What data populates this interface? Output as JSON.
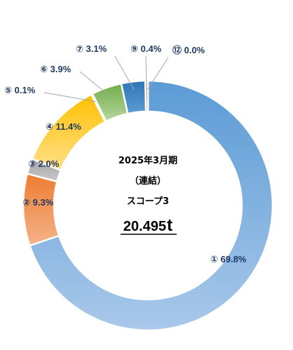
{
  "chart_data": {
    "type": "pie",
    "style": "donut",
    "center": {
      "line1": "2025年3月期",
      "line2": "（連結）",
      "line3": "スコープ3",
      "total_value": "20.495",
      "total_unit": "t"
    },
    "slices": [
      {
        "id": "1",
        "marker": "①",
        "value": 69.8,
        "label": "① 69.8%",
        "color_start": "#5b9bd5",
        "color_end": "#a9c8ea"
      },
      {
        "id": "2",
        "marker": "②",
        "value": 9.3,
        "label": "② 9.3%",
        "color_start": "#ed7d31",
        "color_end": "#f5b28a"
      },
      {
        "id": "3",
        "marker": "③",
        "value": 2.0,
        "label": "③ 2.0%",
        "color_start": "#a5a5a5",
        "color_end": "#c9c9c9"
      },
      {
        "id": "4",
        "marker": "④",
        "value": 11.4,
        "label": "④ 11.4%",
        "color_start": "#ffc000",
        "color_end": "#ffe08a"
      },
      {
        "id": "5",
        "marker": "⑤",
        "value": 0.1,
        "label": "⑤ 0.1%",
        "color_start": "#ffd966",
        "color_end": "#ffe699"
      },
      {
        "id": "6",
        "marker": "⑥",
        "value": 3.9,
        "label": "⑥ 3.9%",
        "color_start": "#70ad47",
        "color_end": "#b7d7a0"
      },
      {
        "id": "7",
        "marker": "⑦",
        "value": 3.1,
        "label": "⑦ 3.1%",
        "color_start": "#2e75b6",
        "color_end": "#5b9bd5"
      },
      {
        "id": "9",
        "marker": "⑨",
        "value": 0.4,
        "label": "⑨ 0.4%",
        "color_start": "#c55a11",
        "color_end": "#c55a11"
      },
      {
        "id": "12",
        "marker": "⑫",
        "value": 0.0,
        "label": "⑫ 0.0%",
        "color_start": "#7030a0",
        "color_end": "#7030a0"
      }
    ]
  }
}
